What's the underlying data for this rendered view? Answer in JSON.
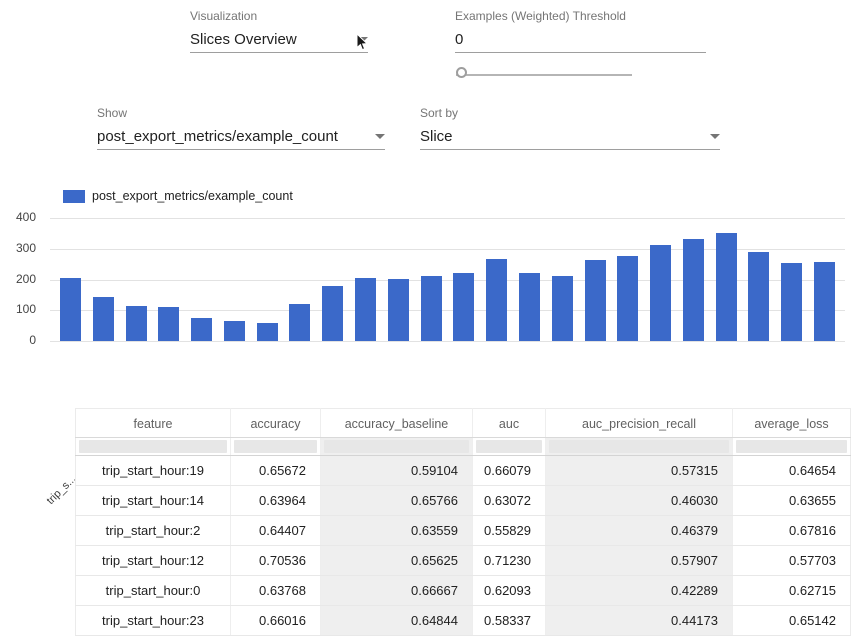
{
  "controls": {
    "visualization": {
      "label": "Visualization",
      "value": "Slices Overview"
    },
    "threshold": {
      "label": "Examples (Weighted) Threshold",
      "value": "0",
      "slider_position": "0"
    },
    "show": {
      "label": "Show",
      "value": "post_export_metrics/example_count"
    },
    "sort_by": {
      "label": "Sort by",
      "value": "Slice"
    }
  },
  "chart_data": {
    "type": "bar",
    "legend": "post_export_metrics/example_count",
    "bar_color": "#3b69c9",
    "categories": [
      "trip_s...",
      "trip_s...",
      "trip_s...",
      "trip_s...",
      "trip_s...",
      "trip_s...",
      "trip_s...",
      "trip_s...",
      "trip_s...",
      "trip_s...",
      "trip_s...",
      "trip_s...",
      "trip_s...",
      "trip_s...",
      "trip_s...",
      "trip_s...",
      "trip_s...",
      "trip_s...",
      "trip_s...",
      "trip_s...",
      "trip_s...",
      "trip_s...",
      "trip_s...",
      "trip_s..."
    ],
    "values": [
      205,
      143,
      113,
      110,
      75,
      66,
      60,
      120,
      178,
      205,
      202,
      213,
      222,
      266,
      220,
      210,
      262,
      277,
      313,
      332,
      351,
      291,
      253,
      256
    ],
    "ylim": [
      0,
      400
    ],
    "yticks": [
      0,
      100,
      200,
      300,
      400
    ],
    "grid": true,
    "legend_position": "top-left"
  },
  "table": {
    "columns": [
      "feature",
      "accuracy",
      "accuracy_baseline",
      "auc",
      "auc_precision_recall",
      "average_loss"
    ],
    "shaded_columns": [
      2,
      4
    ],
    "rows": [
      [
        "trip_start_hour:19",
        "0.65672",
        "0.59104",
        "0.66079",
        "0.57315",
        "0.64654"
      ],
      [
        "trip_start_hour:14",
        "0.63964",
        "0.65766",
        "0.63072",
        "0.46030",
        "0.63655"
      ],
      [
        "trip_start_hour:2",
        "0.64407",
        "0.63559",
        "0.55829",
        "0.46379",
        "0.67816"
      ],
      [
        "trip_start_hour:12",
        "0.70536",
        "0.65625",
        "0.71230",
        "0.57907",
        "0.57703"
      ],
      [
        "trip_start_hour:0",
        "0.63768",
        "0.66667",
        "0.62093",
        "0.42289",
        "0.62715"
      ],
      [
        "trip_start_hour:23",
        "0.66016",
        "0.64844",
        "0.58337",
        "0.44173",
        "0.65142"
      ]
    ]
  }
}
